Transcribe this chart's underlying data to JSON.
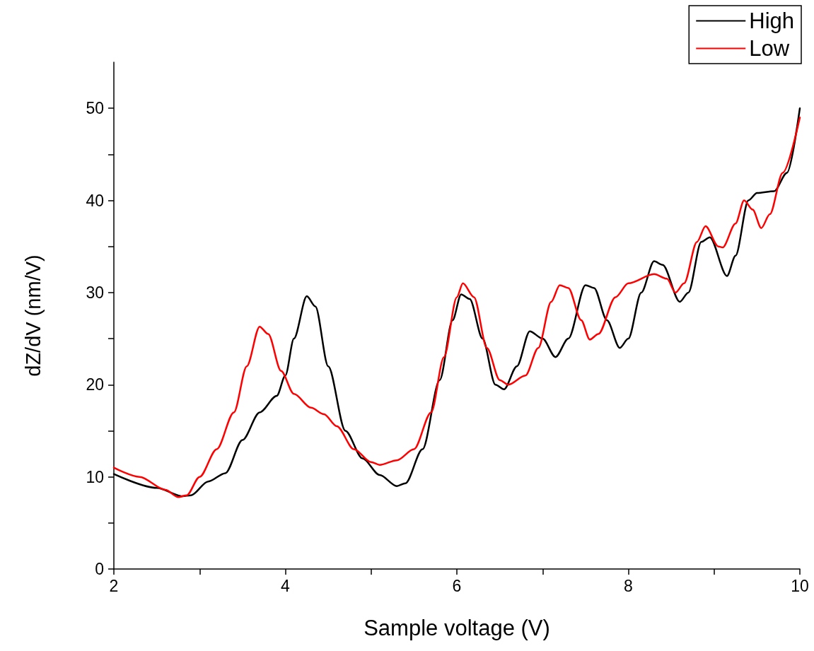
{
  "chart_data": {
    "type": "line",
    "xlabel": "Sample voltage (V)",
    "ylabel": "dZ/dV (nm/V)",
    "xlim": [
      2,
      10
    ],
    "xticks": [
      2,
      {
        "value": 3,
        "label": null
      },
      4,
      {
        "value": 5,
        "label": null
      },
      6,
      {
        "value": 7,
        "label": null
      },
      8,
      {
        "value": 9,
        "label": null
      },
      10
    ],
    "ylim": [
      0,
      55
    ],
    "yticks": [
      0,
      {
        "value": 5,
        "label": null
      },
      10,
      {
        "value": 15,
        "label": null
      },
      20,
      {
        "value": 25,
        "label": null
      },
      30,
      {
        "value": 35,
        "label": null
      },
      40,
      {
        "value": 45,
        "label": null
      },
      50
    ],
    "grid": false,
    "legend": "top right",
    "marker": "none",
    "line_style": "solid",
    "series": [
      {
        "name": "High",
        "color": "#000000",
        "x": [
          2.0,
          2.5,
          2.8,
          2.9,
          3.1,
          3.3,
          3.5,
          3.7,
          3.9,
          4.0,
          4.1,
          4.25,
          4.35,
          4.5,
          4.7,
          4.9,
          5.1,
          5.3,
          5.4,
          5.6,
          5.8,
          5.95,
          6.05,
          6.15,
          6.3,
          6.45,
          6.55,
          6.7,
          6.85,
          7.0,
          7.15,
          7.3,
          7.5,
          7.6,
          7.75,
          7.9,
          8.0,
          8.15,
          8.3,
          8.4,
          8.6,
          8.7,
          8.85,
          8.95,
          9.15,
          9.25,
          9.4,
          9.5,
          9.7,
          9.85,
          10.0
        ],
        "values": [
          10.3,
          8.8,
          7.9,
          8.0,
          9.5,
          10.4,
          14,
          17,
          18.8,
          21,
          25,
          29.6,
          28.5,
          22,
          15,
          12,
          10.2,
          9.0,
          9.3,
          13,
          20.5,
          27,
          29.8,
          29.3,
          25,
          20,
          19.5,
          22,
          25.8,
          25,
          23,
          25,
          30.8,
          30.5,
          27,
          24,
          25,
          30,
          33.4,
          33,
          29,
          30,
          35.5,
          36,
          31.8,
          34,
          40,
          40.8,
          41,
          43,
          50
        ]
      },
      {
        "name": "Low",
        "color": "#ff0000",
        "x": [
          2.0,
          2.3,
          2.6,
          2.75,
          2.85,
          3.0,
          3.2,
          3.4,
          3.55,
          3.7,
          3.8,
          3.95,
          4.1,
          4.3,
          4.45,
          4.6,
          4.8,
          5.0,
          5.1,
          5.3,
          5.5,
          5.7,
          5.85,
          6.0,
          6.07,
          6.2,
          6.35,
          6.5,
          6.6,
          6.8,
          6.95,
          7.1,
          7.2,
          7.3,
          7.45,
          7.55,
          7.65,
          7.85,
          8.0,
          8.3,
          8.45,
          8.55,
          8.65,
          8.8,
          8.9,
          9.05,
          9.1,
          9.25,
          9.35,
          9.45,
          9.55,
          9.65,
          9.8,
          10.0
        ],
        "values": [
          11,
          10,
          8.6,
          7.8,
          8.0,
          10,
          13,
          17,
          22,
          26.3,
          25.5,
          21.5,
          19,
          17.5,
          16.8,
          15.5,
          13,
          11.6,
          11.3,
          11.8,
          13,
          17,
          23,
          29.5,
          31,
          29.5,
          24,
          20.5,
          20,
          21,
          24,
          29,
          30.8,
          30.5,
          27,
          24.9,
          25.5,
          29.5,
          31,
          32,
          31.5,
          30,
          31,
          35.5,
          37.2,
          35,
          34.9,
          37.5,
          40,
          39,
          37,
          38.5,
          43,
          49
        ]
      }
    ]
  }
}
